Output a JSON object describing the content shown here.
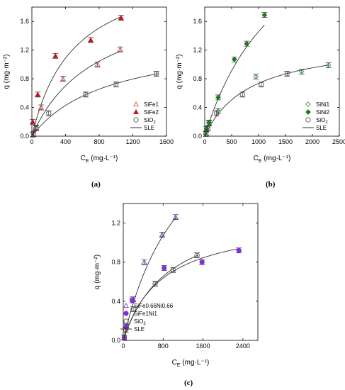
{
  "chart_data": [
    {
      "panel": "(a)",
      "type": "scatter",
      "xlabel": "C_E (mg·L⁻¹)",
      "ylabel": "q (mg·m⁻²)",
      "xlim": [
        0,
        1600
      ],
      "ylim": [
        0,
        1.8
      ],
      "xticks": [
        0,
        400,
        800,
        1200,
        1600
      ],
      "yticks": [
        0.0,
        0.4,
        0.8,
        1.2,
        1.6
      ],
      "legend_position": "bottom-right",
      "series": [
        {
          "name": "SiFe1",
          "marker": "triangle-open",
          "color": "#d9534f",
          "points": [
            [
              10,
              0.02
            ],
            [
              50,
              0.12
            ],
            [
              110,
              0.4
            ],
            [
              370,
              0.8
            ],
            [
              780,
              1.0
            ],
            [
              1050,
              1.21
            ]
          ]
        },
        {
          "name": "SiFe2",
          "marker": "triangle-filled",
          "color": "#c0161c",
          "points": [
            [
              10,
              0.2
            ],
            [
              70,
              0.58
            ],
            [
              280,
              1.12
            ],
            [
              700,
              1.34
            ],
            [
              1060,
              1.65
            ]
          ]
        },
        {
          "name": "SiO2",
          "marker": "circle-open",
          "color": "#555555",
          "points": [
            [
              20,
              0.03
            ],
            [
              50,
              0.11
            ],
            [
              200,
              0.32
            ],
            [
              640,
              0.58
            ],
            [
              1000,
              0.72
            ],
            [
              1480,
              0.87
            ]
          ]
        },
        {
          "name": "SLE",
          "marker": "line",
          "color": "#333333",
          "curves": [
            {
              "qmax": 2.45,
              "K": 0.002,
              "x": [
                0,
                1060
              ]
            },
            {
              "qmax": 2.05,
              "K": 0.0013,
              "x": [
                0,
                1050
              ]
            },
            {
              "qmax": 1.4,
              "K": 0.0011,
              "x": [
                0,
                1500
              ]
            }
          ]
        }
      ]
    },
    {
      "panel": "(b)",
      "type": "scatter",
      "xlabel": "C_E (mg·L⁻¹)",
      "ylabel": "q (mg·m⁻²)",
      "xlim": [
        0,
        2500
      ],
      "ylim": [
        0,
        1.8
      ],
      "xticks": [
        0,
        500,
        1000,
        1500,
        2000,
        2500
      ],
      "yticks": [
        0.0,
        0.4,
        0.8,
        1.2,
        1.6
      ],
      "legend_position": "bottom-right",
      "series": [
        {
          "name": "SiNi1",
          "marker": "diamond-open",
          "color": "#3fa34d",
          "points": [
            [
              30,
              0.05
            ],
            [
              80,
              0.18
            ],
            [
              250,
              0.35
            ],
            [
              950,
              0.83
            ],
            [
              1800,
              0.9
            ],
            [
              2300,
              0.99
            ]
          ]
        },
        {
          "name": "SiNi2",
          "marker": "diamond-filled",
          "color": "#1a7a1a",
          "points": [
            [
              30,
              0.1
            ],
            [
              80,
              0.19
            ],
            [
              250,
              0.54
            ],
            [
              550,
              1.07
            ],
            [
              780,
              1.29
            ],
            [
              1110,
              1.69
            ]
          ]
        },
        {
          "name": "SiO2",
          "marker": "circle-open",
          "color": "#555555",
          "points": [
            [
              20,
              0.03
            ],
            [
              60,
              0.11
            ],
            [
              220,
              0.32
            ],
            [
              700,
              0.58
            ],
            [
              1050,
              0.72
            ],
            [
              1530,
              0.87
            ]
          ]
        },
        {
          "name": "SLE",
          "marker": "line",
          "color": "#333333",
          "curves": [
            {
              "qmax": 3.6,
              "K": 0.00068,
              "x": [
                0,
                1110
              ]
            },
            {
              "qmax": 1.35,
              "K": 0.0012,
              "x": [
                0,
                2300
              ]
            }
          ]
        }
      ]
    },
    {
      "panel": "(c)",
      "type": "scatter",
      "xlabel": "C_E (mg·L⁻¹)",
      "ylabel": "q (mg·m⁻²)",
      "xlim": [
        0,
        2700
      ],
      "ylim": [
        0,
        1.4
      ],
      "xticks": [
        0,
        800,
        1600,
        2400
      ],
      "yticks": [
        0.0,
        0.4,
        0.8,
        1.2
      ],
      "legend_position": "bottom-right",
      "series": [
        {
          "name": "SiFe0.66Ni0.66",
          "marker": "triangle-open",
          "color": "#7a3fbf",
          "points": [
            [
              20,
              0.03
            ],
            [
              60,
              0.15
            ],
            [
              200,
              0.42
            ],
            [
              420,
              0.8
            ],
            [
              780,
              1.08
            ],
            [
              1050,
              1.26
            ]
          ]
        },
        {
          "name": "SiFe1Ni1",
          "marker": "circle-filled",
          "color": "#8a2be2",
          "points": [
            [
              20,
              0.03
            ],
            [
              60,
              0.14
            ],
            [
              180,
              0.41
            ],
            [
              820,
              0.74
            ],
            [
              1580,
              0.8
            ],
            [
              2320,
              0.92
            ]
          ]
        },
        {
          "name": "SiO2",
          "marker": "circle-open",
          "color": "#555555",
          "points": [
            [
              20,
              0.03
            ],
            [
              50,
              0.11
            ],
            [
              200,
              0.32
            ],
            [
              640,
              0.58
            ],
            [
              1000,
              0.72
            ],
            [
              1480,
              0.87
            ]
          ]
        },
        {
          "name": "SLE",
          "marker": "line",
          "color": "#333333",
          "curves": [
            {
              "qmax": 2.75,
              "K": 0.0008,
              "x": [
                0,
                1050
              ]
            },
            {
              "qmax": 1.25,
              "K": 0.0013,
              "x": [
                0,
                2320
              ]
            },
            {
              "qmax": 1.4,
              "K": 0.0011,
              "x": [
                0,
                1500
              ]
            }
          ]
        }
      ]
    }
  ]
}
